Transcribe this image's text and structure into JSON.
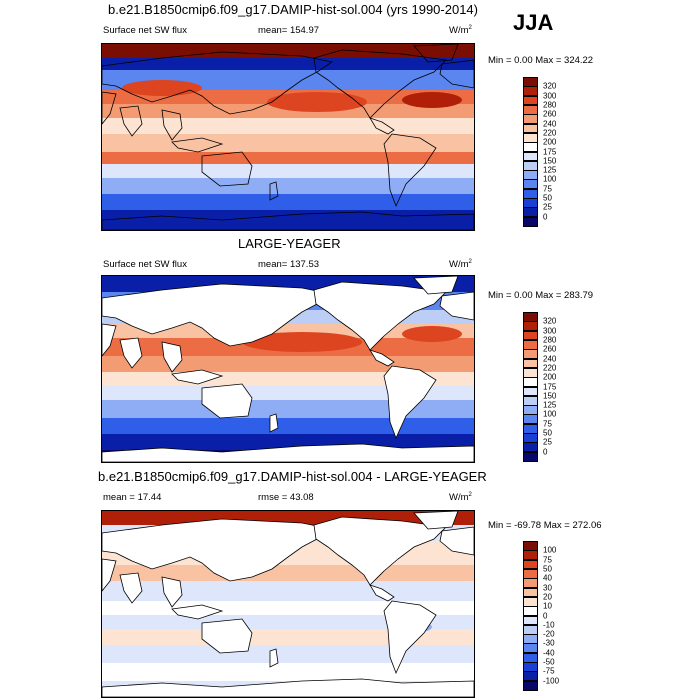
{
  "season": "JJA",
  "chart_data": [
    {
      "type": "heatmap",
      "title": "b.e21.B1850cmip6.f09_g17.DAMIP-hist-sol.004 (yrs 1990-2014)",
      "left_label": "Surface net SW flux",
      "center_label": "mean= 154.97",
      "units": "W/m",
      "units_sup": "2",
      "minmax": "Min =   0.00 Max = 324.22",
      "colorbar": {
        "levels": [
          "0",
          "25",
          "50",
          "75",
          "100",
          "125",
          "150",
          "175",
          "200",
          "220",
          "240",
          "260",
          "280",
          "300",
          "320"
        ],
        "colors": [
          "#08086b",
          "#0a1fa8",
          "#1a3fd6",
          "#2f5fe8",
          "#5b86ef",
          "#8fadf4",
          "#bccdf6",
          "#dde6fa",
          "#ffffff",
          "#fce3d2",
          "#f8c2a3",
          "#f39b73",
          "#ec6d44",
          "#dd4420",
          "#b02008",
          "#7a0e02"
        ]
      }
    },
    {
      "type": "heatmap",
      "title": "LARGE-YEAGER",
      "left_label": "Surface net SW flux",
      "center_label": "mean= 137.53",
      "units": "W/m",
      "units_sup": "2",
      "minmax": "Min =   0.00 Max = 283.79",
      "colorbar": {
        "levels": [
          "0",
          "25",
          "50",
          "75",
          "100",
          "125",
          "150",
          "175",
          "200",
          "220",
          "240",
          "260",
          "280",
          "300",
          "320"
        ],
        "colors": [
          "#08086b",
          "#0a1fa8",
          "#1a3fd6",
          "#2f5fe8",
          "#5b86ef",
          "#8fadf4",
          "#bccdf6",
          "#dde6fa",
          "#ffffff",
          "#fce3d2",
          "#f8c2a3",
          "#f39b73",
          "#ec6d44",
          "#dd4420",
          "#b02008",
          "#7a0e02"
        ]
      }
    },
    {
      "type": "heatmap",
      "title": "b.e21.B1850cmip6.f09_g17.DAMIP-hist-sol.004 - LARGE-YEAGER",
      "left_label": "mean =  17.44",
      "center_label": "rmse =  43.08",
      "units": "W/m",
      "units_sup": "2",
      "minmax": "Min = -69.78 Max = 272.06",
      "colorbar": {
        "levels": [
          "-100",
          "-75",
          "-50",
          "-40",
          "-30",
          "-20",
          "-10",
          "0",
          "10",
          "20",
          "30",
          "40",
          "50",
          "75",
          "100"
        ],
        "colors": [
          "#08086b",
          "#0a1fa8",
          "#1a3fd6",
          "#2f5fe8",
          "#5b86ef",
          "#8fadf4",
          "#bccdf6",
          "#dde6fa",
          "#ffffff",
          "#fce3d2",
          "#f8c2a3",
          "#f39b73",
          "#ec6d44",
          "#dd4420",
          "#b02008",
          "#7a0e02"
        ]
      }
    }
  ]
}
